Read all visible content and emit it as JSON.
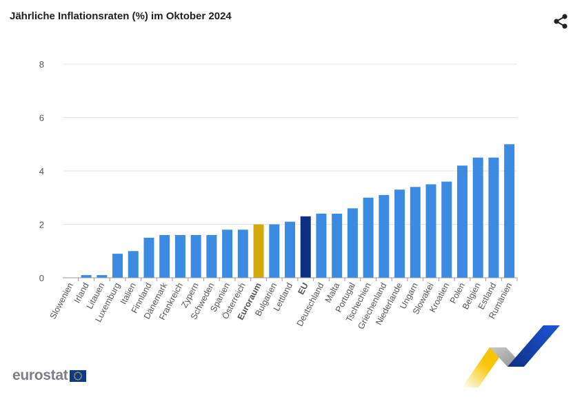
{
  "header": {
    "title": "Jährliche Inflationsraten (%) im Oktober 2024",
    "share_icon": "share-icon"
  },
  "logo": {
    "text": "eurostat",
    "flag_icon": "eu-flag-icon"
  },
  "colors": {
    "bar": "#3b8be2",
    "euroraum": "#d4a90c",
    "eu": "#0e2f86",
    "grid": "#e6e6e6",
    "tick_text": "#555555"
  },
  "chart_data": {
    "type": "bar",
    "title": "Jährliche Inflationsraten (%) im Oktober 2024",
    "xlabel": "",
    "ylabel": "",
    "ylim": [
      0,
      8
    ],
    "yticks": [
      0,
      2,
      4,
      6,
      8
    ],
    "grid": true,
    "categories": [
      "Slowenien",
      "Irland",
      "Litauen",
      "Luxemburg",
      "Italien",
      "Finnland",
      "Dänemark",
      "Frankreich",
      "Zypern",
      "Schweden",
      "Spanien",
      "Österreich",
      "Euroraum",
      "Bulgarien",
      "Lettland",
      "EU",
      "Deutschland",
      "Malta",
      "Portugal",
      "Tschechien",
      "Griechenland",
      "Niederlande",
      "Ungarn",
      "Slowakei",
      "Kroatien",
      "Polen",
      "Belgien",
      "Estland",
      "Rumänien"
    ],
    "values": [
      0.0,
      0.1,
      0.1,
      0.9,
      1.0,
      1.5,
      1.6,
      1.6,
      1.6,
      1.6,
      1.8,
      1.8,
      2.0,
      2.0,
      2.1,
      2.3,
      2.4,
      2.4,
      2.6,
      3.0,
      3.1,
      3.3,
      3.4,
      3.5,
      3.6,
      4.2,
      4.5,
      4.5,
      5.0
    ],
    "highlights": {
      "Euroraum": "euroraum",
      "EU": "eu"
    },
    "bold_labels": [
      "Euroraum",
      "EU"
    ]
  }
}
